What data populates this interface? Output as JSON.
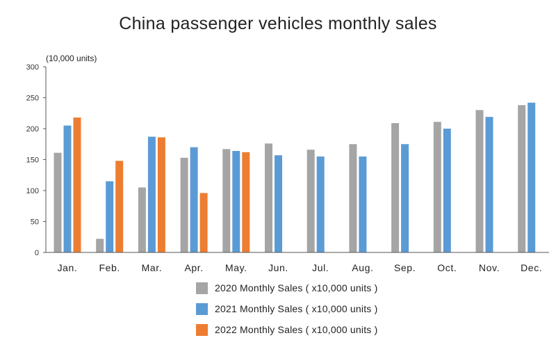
{
  "chart_data": {
    "type": "bar",
    "title": "China passenger vehicles monthly sales",
    "unit_label": "(10,000 units)",
    "categories": [
      "Jan.",
      "Feb.",
      "Mar.",
      "Apr.",
      "May.",
      "Jun.",
      "Jul.",
      "Aug.",
      "Sep.",
      "Oct.",
      "Nov.",
      "Dec."
    ],
    "yticks": [
      0,
      50,
      100,
      150,
      200,
      250,
      300
    ],
    "ylim": [
      0,
      300
    ],
    "grid": false,
    "legend_position": "bottom",
    "series": [
      {
        "name": "2020 Monthly Sales ( x10,000 units )",
        "color": "#a5a5a5",
        "values": [
          161,
          22,
          105,
          153,
          167,
          176,
          166,
          175,
          209,
          211,
          230,
          238
        ]
      },
      {
        "name": "2021 Monthly Sales ( x10,000 units )",
        "color": "#5b9bd5",
        "values": [
          205,
          115,
          187,
          170,
          164,
          157,
          155,
          155,
          175,
          200,
          219,
          242
        ]
      },
      {
        "name": "2022 Monthly Sales ( x10,000 units )",
        "color": "#ed7d31",
        "values": [
          218,
          148,
          186,
          96,
          162,
          null,
          null,
          null,
          null,
          null,
          null,
          null
        ]
      }
    ]
  }
}
